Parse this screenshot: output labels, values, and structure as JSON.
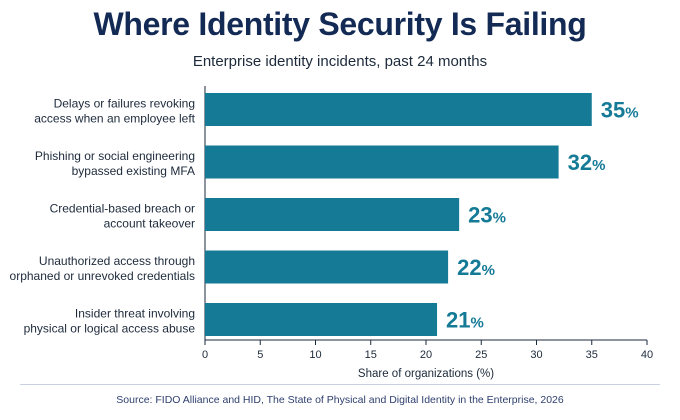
{
  "title": "Where Identity Security Is Failing",
  "subtitle": "Enterprise identity incidents, past 24 months",
  "source": "Source: FIDO Alliance and HID, The State of Physical and Digital Identity in the Enterprise, 2026",
  "colors": {
    "bar": "#157a96",
    "value_label": "#157a96",
    "axis": "#1d2a3b"
  },
  "chart_data": {
    "type": "bar",
    "orientation": "horizontal",
    "title": "Where Identity Security Is Failing",
    "subtitle": "Enterprise identity incidents, past 24 months",
    "categories": [
      [
        "Delays or failures revoking",
        "access when an employee left"
      ],
      [
        "Phishing or social engineering",
        "bypassed existing MFA"
      ],
      [
        "Credential-based breach or",
        "account takeover"
      ],
      [
        "Unauthorized access through",
        "orphaned or unrevoked credentials"
      ],
      [
        "Insider threat involving",
        "physical or logical access abuse"
      ]
    ],
    "values": [
      35,
      32,
      23,
      22,
      21
    ],
    "value_labels": [
      "35",
      "32",
      "23",
      "22",
      "21"
    ],
    "value_suffix": "%",
    "xlabel": "Share of organizations (%)",
    "ylabel": "",
    "xlim": [
      0,
      40
    ],
    "xticks": [
      0,
      5,
      10,
      15,
      20,
      25,
      30,
      35,
      40
    ],
    "grid": false,
    "legend": "none"
  }
}
